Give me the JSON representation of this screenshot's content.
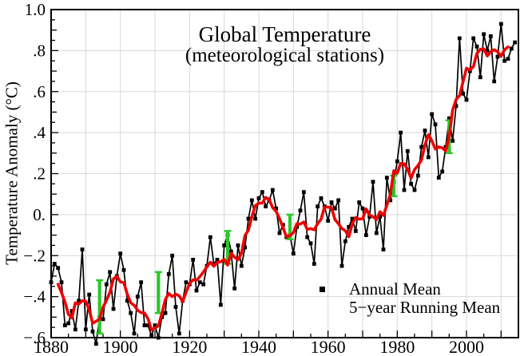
{
  "title": "Global Temperature",
  "subtitle": "(meteorological stations)",
  "y_axis": {
    "label": "Temperature Anomaly (°C)",
    "tick_labels": [
      "1.0",
      ".8",
      ".6",
      ".4",
      ".2",
      "0.",
      "−.2",
      "−.4",
      "−.6"
    ],
    "tick_values": [
      1.0,
      0.8,
      0.6,
      0.4,
      0.2,
      0.0,
      -0.2,
      -0.4,
      -0.6
    ]
  },
  "x_axis": {
    "tick_labels": [
      "1880",
      "1900",
      "1920",
      "1940",
      "1960",
      "1980",
      "2000"
    ],
    "tick_values": [
      1880,
      1900,
      1920,
      1940,
      1960,
      1980,
      2000
    ]
  },
  "legend": [
    {
      "label": "Annual Mean",
      "series": "annual-mean"
    },
    {
      "label": "5−year Running Mean",
      "series": "running-mean"
    }
  ],
  "colors": {
    "annual_mean": "#000000",
    "running_mean": "#ee0000",
    "uncertainty_bar": "#28c828",
    "grid": "#d8d8d8",
    "frame": "#000000",
    "background": "#ffffff"
  },
  "chart_data": {
    "type": "line",
    "title": "Global Temperature",
    "subtitle": "(meteorological stations)",
    "xlabel": "",
    "ylabel": "Temperature Anomaly (°C)",
    "xlim": [
      1880,
      2015
    ],
    "ylim": [
      -0.6,
      1.0
    ],
    "grid": true,
    "grid_step_x_years": 10,
    "grid_step_y": 0.2,
    "legend_position": "lower right inside plot",
    "start_year": 1880,
    "end_year": 2014,
    "series": [
      {
        "name": "Annual Mean",
        "style": "black line with square markers",
        "values": [
          -0.33,
          -0.24,
          -0.26,
          -0.33,
          -0.54,
          -0.53,
          -0.47,
          -0.56,
          -0.42,
          -0.17,
          -0.56,
          -0.39,
          -0.57,
          -0.63,
          -0.5,
          -0.51,
          -0.34,
          -0.28,
          -0.46,
          -0.3,
          -0.19,
          -0.27,
          -0.42,
          -0.48,
          -0.58,
          -0.4,
          -0.33,
          -0.54,
          -0.54,
          -0.59,
          -0.54,
          -0.6,
          -0.5,
          -0.48,
          -0.29,
          -0.2,
          -0.45,
          -0.58,
          -0.42,
          -0.33,
          -0.34,
          -0.22,
          -0.37,
          -0.33,
          -0.34,
          -0.25,
          -0.11,
          -0.24,
          -0.22,
          -0.44,
          -0.15,
          -0.1,
          -0.18,
          -0.36,
          -0.15,
          -0.25,
          -0.16,
          -0.02,
          0.07,
          -0.02,
          0.08,
          0.11,
          0.04,
          0.07,
          0.12,
          0.03,
          -0.09,
          -0.05,
          -0.11,
          -0.1,
          -0.19,
          -0.06,
          0.02,
          0.11,
          -0.11,
          -0.14,
          -0.24,
          0.04,
          0.08,
          0.04,
          -0.03,
          0.06,
          0.03,
          0.07,
          -0.25,
          -0.13,
          -0.06,
          -0.02,
          -0.08,
          0.06,
          0.03,
          -0.1,
          -0.01,
          0.16,
          -0.09,
          -0.01,
          -0.17,
          0.18,
          0.07,
          0.16,
          0.26,
          0.4,
          0.12,
          0.31,
          0.15,
          0.12,
          0.19,
          0.33,
          0.41,
          0.28,
          0.49,
          0.44,
          0.18,
          0.21,
          0.33,
          0.47,
          0.36,
          0.53,
          0.86,
          0.59,
          0.56,
          0.7,
          0.86,
          0.82,
          0.67,
          0.88,
          0.8,
          0.87,
          0.65,
          0.77,
          0.93,
          0.75,
          0.76,
          0.81,
          0.84
        ]
      },
      {
        "name": "5−year Running Mean",
        "style": "thick red line",
        "derived": "centered 5-year running mean of Annual Mean (plotted 1882-2012)"
      }
    ],
    "uncertainty_bars": [
      {
        "year": 1894,
        "lo": -0.58,
        "hi": -0.32
      },
      {
        "year": 1911,
        "lo": -0.48,
        "hi": -0.28
      },
      {
        "year": 1931,
        "lo": -0.24,
        "hi": -0.08
      },
      {
        "year": 1949,
        "lo": -0.12,
        "hi": 0.0
      },
      {
        "year": 1979,
        "lo": 0.09,
        "hi": 0.19
      },
      {
        "year": 1995,
        "lo": 0.3,
        "hi": 0.46
      }
    ]
  }
}
